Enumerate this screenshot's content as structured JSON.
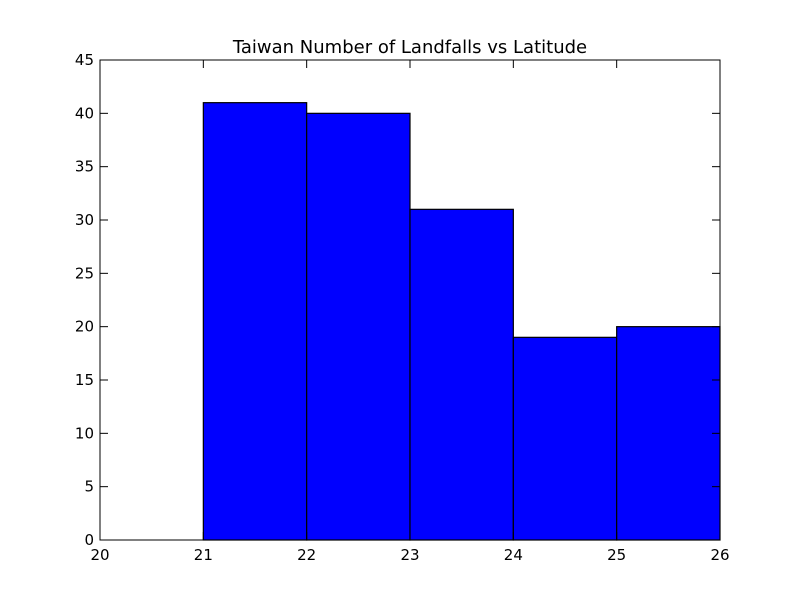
{
  "chart_data": {
    "type": "bar",
    "title": "Taiwan Number of Landfalls vs Latitude",
    "xlabel": "",
    "ylabel": "",
    "bins": [
      {
        "start": 20,
        "end": 21,
        "value": 0
      },
      {
        "start": 21,
        "end": 22,
        "value": 41
      },
      {
        "start": 22,
        "end": 23,
        "value": 40
      },
      {
        "start": 23,
        "end": 24,
        "value": 31
      },
      {
        "start": 24,
        "end": 25,
        "value": 19
      },
      {
        "start": 25,
        "end": 26,
        "value": 20
      }
    ],
    "xlim": [
      20,
      26
    ],
    "ylim": [
      0,
      45
    ],
    "xticks": [
      20,
      21,
      22,
      23,
      24,
      25,
      26
    ],
    "yticks": [
      0,
      5,
      10,
      15,
      20,
      25,
      30,
      35,
      40,
      45
    ],
    "bar_color": "#0000ff",
    "grid": false,
    "legend": "none"
  }
}
